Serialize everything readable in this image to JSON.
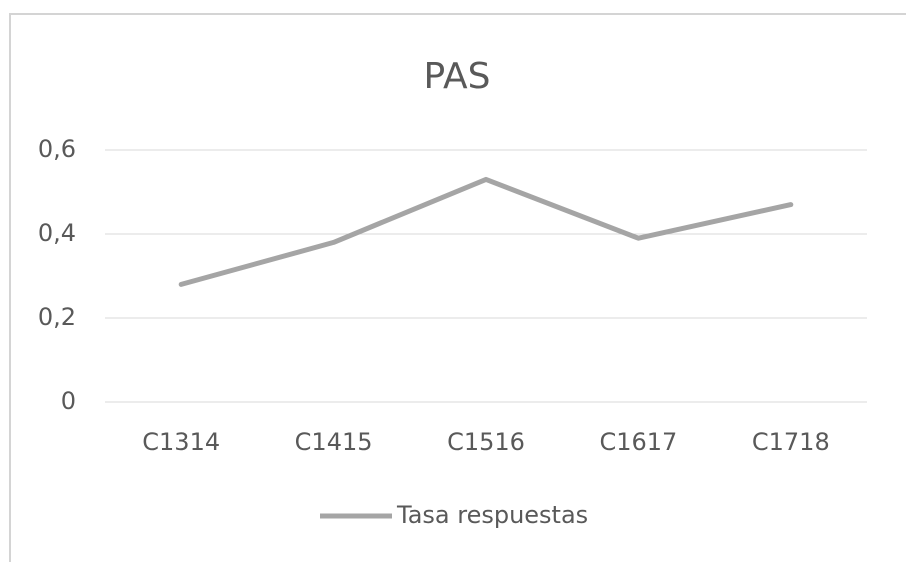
{
  "chart_data": {
    "type": "line",
    "title": "PAS",
    "categories": [
      "C1314",
      "C1415",
      "C1516",
      "C1617",
      "C1718"
    ],
    "series": [
      {
        "name": "Tasa respuestas",
        "color": "#a5a5a5",
        "values": [
          0.28,
          0.38,
          0.53,
          0.39,
          0.47
        ]
      }
    ],
    "ylim": [
      0,
      0.6
    ],
    "yticks": [
      0,
      {
        "value": 0.2,
        "label": "0,2"
      },
      {
        "value": 0.4,
        "label": "0,4"
      },
      {
        "value": 0.6,
        "label": "0,6"
      }
    ],
    "grid": true,
    "legend": "bottom"
  }
}
